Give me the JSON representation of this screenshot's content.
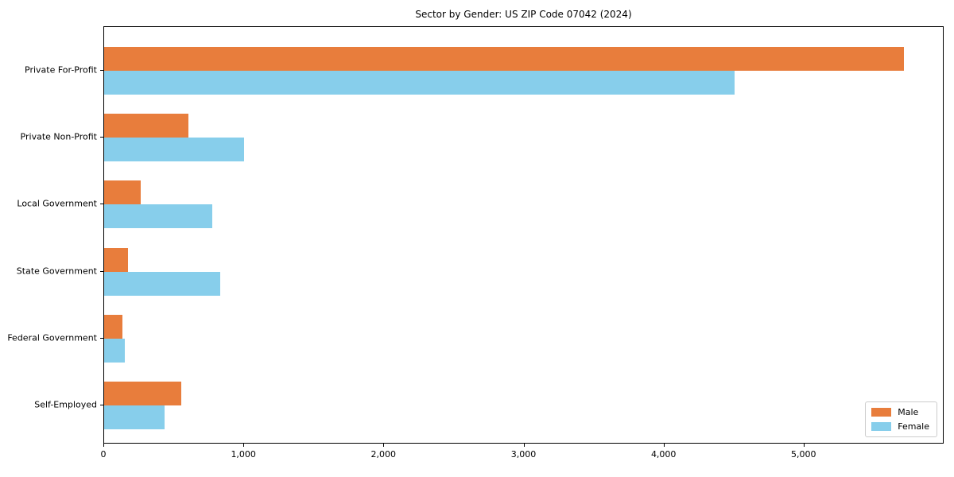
{
  "chart_data": {
    "type": "bar",
    "orientation": "horizontal",
    "title": "Sector by Gender: US ZIP Code 07042 (2024)",
    "categories": [
      "Private For-Profit",
      "Private Non-Profit",
      "Local Government",
      "State Government",
      "Federal Government",
      "Self-Employed"
    ],
    "series": [
      {
        "name": "Male",
        "color": "#e87d3c",
        "values": [
          5710,
          600,
          260,
          170,
          130,
          550
        ]
      },
      {
        "name": "Female",
        "color": "#87ceeb",
        "values": [
          4500,
          1000,
          770,
          830,
          150,
          430
        ]
      }
    ],
    "xlim": [
      0,
      6000
    ],
    "xticks": [
      0,
      1000,
      2000,
      3000,
      4000,
      5000
    ],
    "xtick_labels": [
      "0",
      "1,000",
      "2,000",
      "3,000",
      "4,000",
      "5,000"
    ],
    "legend": {
      "position": "lower right",
      "entries": [
        "Male",
        "Female"
      ]
    },
    "grid": false,
    "xlabel": "",
    "ylabel": ""
  }
}
